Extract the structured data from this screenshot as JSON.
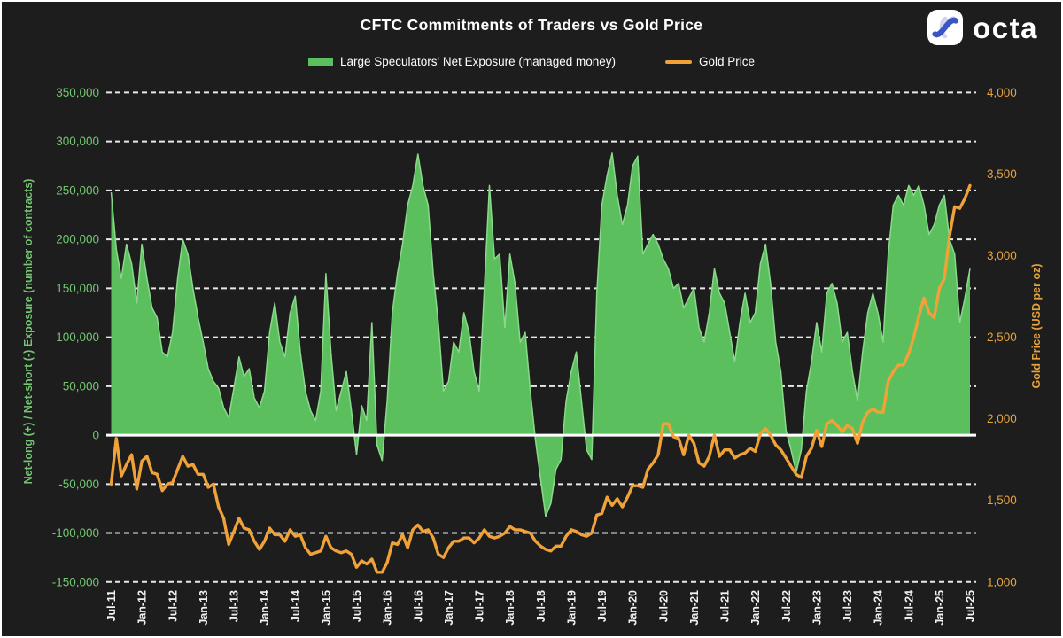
{
  "page": {
    "background": "#1d1d1d",
    "frame_border_color": "#ffffff"
  },
  "header": {
    "title": "CFTC Commitments of Traders vs Gold Price",
    "brand": "octa"
  },
  "legend": {
    "items": [
      {
        "label": "Large Speculators' Net Exposure (managed money)",
        "color": "#5cbf5e",
        "type": "area"
      },
      {
        "label": "Gold Price",
        "color": "#f0a238",
        "type": "line"
      }
    ]
  },
  "chart_data": {
    "type": "area+line",
    "title": "CFTC Commitments of Traders vs Gold Price",
    "grid": {
      "style": "dashed",
      "color": "#ffffff",
      "visible": true
    },
    "zero_line": {
      "value": 0,
      "color": "#ffffff",
      "style": "solid"
    },
    "x": {
      "start_label": "Jul-11",
      "end_label": "Jul-25",
      "points_per_tick": 6,
      "tick_labels": [
        "Jul-11",
        "Jan-12",
        "Jul-12",
        "Jan-13",
        "Jul-13",
        "Jan-14",
        "Jul-14",
        "Jan-15",
        "Jul-15",
        "Jan-16",
        "Jul-16",
        "Jan-17",
        "Jul-17",
        "Jan-18",
        "Jul-18",
        "Jan-19",
        "Jul-19",
        "Jan-20",
        "Jul-20",
        "Jan-21",
        "Jul-21",
        "Jan-22",
        "Jul-22",
        "Jan-23",
        "Jul-23",
        "Jan-24",
        "Jul-24",
        "Jan-25",
        "Jul-25"
      ],
      "tick_color": "#f2f2f2"
    },
    "left_axis": {
      "title": "Net-long (+) / Net-short (-) Exposure (number of contracts)",
      "color": "#74c673",
      "min": -150000,
      "max": 350000,
      "tick_step": 50000,
      "tick_labels": [
        "350,000",
        "300,000",
        "250,000",
        "200,000",
        "150,000",
        "100,000",
        "50,000",
        "0",
        "-50,000",
        "-100,000",
        "-150,000"
      ]
    },
    "right_axis": {
      "title": "Gold Price (USD per oz)",
      "color": "#e5a23c",
      "min": 1000,
      "max": 4000,
      "tick_step": 500,
      "tick_labels": [
        "4,000",
        "3,500",
        "3,000",
        "2,500",
        "2,000",
        "1,500",
        "1,000"
      ]
    },
    "series": [
      {
        "name": "Large Speculators' Net Exposure (managed money)",
        "type": "area",
        "axis": "left",
        "color": "#5cbf5e",
        "edge_color": "#8bd88b",
        "unit": "contracts",
        "scale": 1000,
        "sampling": "monthly",
        "first_point": "Jul-2011",
        "last_point": "Jul-2025",
        "values": [
          248,
          190,
          160,
          195,
          175,
          135,
          195,
          160,
          130,
          120,
          85,
          80,
          105,
          160,
          200,
          185,
          150,
          120,
          95,
          68,
          55,
          48,
          28,
          18,
          48,
          80,
          60,
          68,
          38,
          28,
          45,
          105,
          135,
          95,
          80,
          125,
          142,
          85,
          45,
          25,
          15,
          45,
          165,
          85,
          25,
          45,
          65,
          25,
          -20,
          30,
          15,
          115,
          -10,
          -26,
          35,
          125,
          165,
          195,
          235,
          255,
          287,
          255,
          235,
          165,
          115,
          45,
          55,
          95,
          85,
          125,
          105,
          65,
          45,
          150,
          255,
          180,
          185,
          110,
          185,
          155,
          95,
          105,
          45,
          -5,
          -45,
          -83,
          -70,
          -35,
          -25,
          35,
          65,
          85,
          35,
          -15,
          -25,
          145,
          235,
          265,
          288,
          245,
          215,
          235,
          275,
          285,
          185,
          195,
          205,
          195,
          180,
          170,
          150,
          155,
          130,
          140,
          150,
          110,
          95,
          125,
          170,
          145,
          135,
          105,
          75,
          115,
          145,
          115,
          125,
          175,
          195,
          155,
          95,
          65,
          5,
          -15,
          -38,
          -15,
          45,
          75,
          115,
          85,
          145,
          155,
          135,
          95,
          105,
          65,
          35,
          85,
          125,
          145,
          125,
          95,
          185,
          235,
          245,
          235,
          255,
          245,
          255,
          235,
          205,
          215,
          235,
          245,
          200,
          185,
          115,
          140,
          170
        ]
      },
      {
        "name": "Gold Price",
        "type": "line",
        "axis": "right",
        "color": "#f0a238",
        "unit": "USD per oz",
        "scale": 1,
        "sampling": "monthly",
        "first_point": "Jul-2011",
        "last_point": "Jul-2025",
        "values": [
          1600,
          1880,
          1650,
          1720,
          1780,
          1570,
          1740,
          1770,
          1670,
          1660,
          1560,
          1600,
          1610,
          1690,
          1770,
          1710,
          1720,
          1660,
          1660,
          1580,
          1600,
          1460,
          1390,
          1230,
          1310,
          1390,
          1330,
          1320,
          1250,
          1200,
          1250,
          1330,
          1290,
          1290,
          1250,
          1320,
          1280,
          1290,
          1210,
          1170,
          1180,
          1190,
          1280,
          1210,
          1190,
          1180,
          1190,
          1170,
          1090,
          1130,
          1110,
          1140,
          1060,
          1060,
          1120,
          1240,
          1230,
          1290,
          1210,
          1320,
          1350,
          1310,
          1320,
          1270,
          1170,
          1150,
          1210,
          1250,
          1250,
          1270,
          1270,
          1240,
          1270,
          1320,
          1280,
          1270,
          1280,
          1300,
          1340,
          1320,
          1320,
          1310,
          1300,
          1250,
          1220,
          1200,
          1190,
          1220,
          1220,
          1280,
          1320,
          1310,
          1290,
          1280,
          1300,
          1410,
          1420,
          1520,
          1470,
          1510,
          1460,
          1520,
          1590,
          1590,
          1580,
          1690,
          1730,
          1780,
          1970,
          1970,
          1890,
          1880,
          1780,
          1900,
          1850,
          1730,
          1710,
          1770,
          1900,
          1770,
          1810,
          1810,
          1760,
          1780,
          1790,
          1820,
          1800,
          1910,
          1940,
          1900,
          1840,
          1810,
          1760,
          1710,
          1660,
          1640,
          1770,
          1820,
          1930,
          1830,
          1970,
          1990,
          1960,
          1920,
          1960,
          1940,
          1850,
          1980,
          2040,
          2060,
          2040,
          2040,
          2230,
          2290,
          2330,
          2330,
          2400,
          2500,
          2630,
          2740,
          2650,
          2620,
          2800,
          2860,
          3120,
          3300,
          3290,
          3350,
          3430
        ]
      }
    ]
  }
}
